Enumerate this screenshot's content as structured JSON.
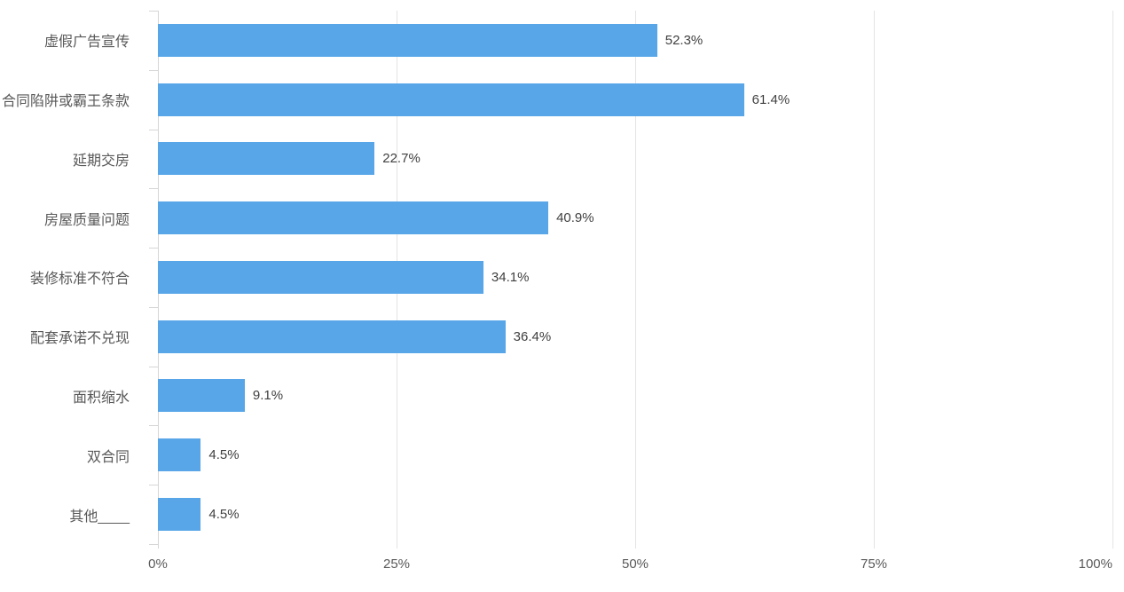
{
  "chart_data": {
    "type": "bar",
    "orientation": "horizontal",
    "title": "",
    "categories": [
      "虚假广告宣传",
      "合同陷阱或霸王条款",
      "延期交房",
      "房屋质量问题",
      "装修标准不符合",
      "配套承诺不兑现",
      "面积缩水",
      "双合同",
      "其他____"
    ],
    "values": [
      52.3,
      61.4,
      22.7,
      40.9,
      34.1,
      36.4,
      9.1,
      4.5,
      4.5
    ],
    "value_labels": [
      "52.3%",
      "61.4%",
      "22.7%",
      "40.9%",
      "34.1%",
      "36.4%",
      "9.1%",
      "4.5%",
      "4.5%"
    ],
    "x_tick_labels": [
      "0%",
      "25%",
      "50%",
      "75%",
      "100%"
    ],
    "x_tick_values": [
      0,
      25,
      50,
      75,
      100
    ],
    "xlim": [
      0,
      100
    ],
    "grid": true,
    "legend_position": "none",
    "bar_color": "#58a6e8",
    "grid_color": "#e4e4e4",
    "axis_color": "#d6d6d6",
    "category_label_color": "#595959",
    "value_label_color": "#3f3f3f",
    "x_tick_label_color": "#595959"
  }
}
